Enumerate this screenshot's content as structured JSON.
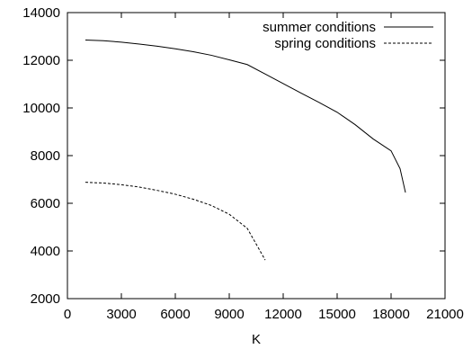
{
  "chart_data": {
    "type": "line",
    "title": "",
    "xlabel": "K",
    "ylabel": "",
    "xlim": [
      0,
      21000
    ],
    "ylim": [
      2000,
      14000
    ],
    "xticks": [
      0,
      3000,
      6000,
      9000,
      12000,
      15000,
      18000,
      21000
    ],
    "xtick_labels": [
      "0",
      "3000",
      "6000",
      "9000",
      "12000",
      "15000",
      "18000",
      "21000"
    ],
    "yticks": [
      2000,
      4000,
      6000,
      8000,
      10000,
      12000,
      14000
    ],
    "ytick_labels": [
      "2000",
      "4000",
      "6000",
      "8000",
      "10000",
      "12000",
      "14000"
    ],
    "grid": false,
    "legend_position": "top-right",
    "series": [
      {
        "name": "summer conditions",
        "style": "solid",
        "color": "#000000",
        "x": [
          1000,
          2000,
          3000,
          4000,
          5000,
          6000,
          7000,
          8000,
          9000,
          10000,
          11000,
          12000,
          13000,
          14000,
          15000,
          16000,
          17000,
          18000,
          18500,
          18800
        ],
        "y": [
          12850,
          12820,
          12760,
          12680,
          12590,
          12480,
          12360,
          12210,
          12020,
          11820,
          11420,
          11020,
          10620,
          10230,
          9820,
          9300,
          8700,
          8200,
          7450,
          6450
        ]
      },
      {
        "name": "spring conditions",
        "style": "dashed",
        "color": "#000000",
        "x": [
          1000,
          2000,
          3000,
          4000,
          5000,
          6000,
          7000,
          8000,
          9000,
          10000,
          11000
        ],
        "y": [
          6880,
          6850,
          6780,
          6680,
          6540,
          6380,
          6170,
          5910,
          5540,
          4950,
          3620
        ]
      }
    ]
  }
}
